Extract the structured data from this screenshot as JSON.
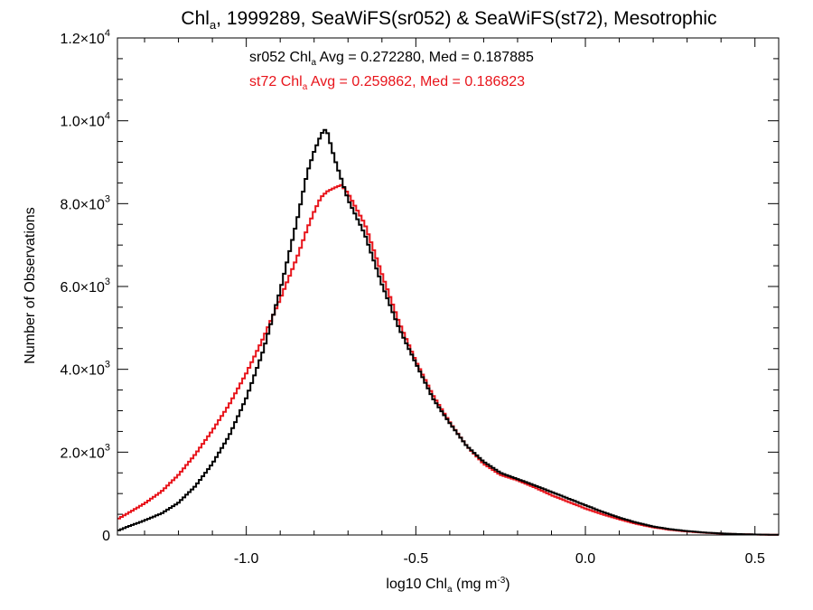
{
  "chart_data": {
    "type": "line",
    "title": {
      "pre": "Chl",
      "sub": "a",
      "post": ", 1999289, SeaWiFS(sr052) & SeaWiFS(st72), Mesotrophic"
    },
    "xlabel": {
      "pre": "log10 Chl",
      "sub": "a",
      "mid": " (mg m",
      "sup": "-3",
      "post": ")"
    },
    "ylabel": "Number of Observations",
    "xlim": [
      -1.38,
      0.57
    ],
    "ylim": [
      0,
      12000
    ],
    "x_ticks": [
      {
        "value": -1.0,
        "label": "-1.0"
      },
      {
        "value": -0.5,
        "label": "-0.5"
      },
      {
        "value": 0.0,
        "label": "0.0"
      },
      {
        "value": 0.5,
        "label": "0.5"
      }
    ],
    "y_ticks": [
      {
        "value": 0,
        "mant": "0",
        "exp": ""
      },
      {
        "value": 2000,
        "mant": "2.0×10",
        "exp": "3"
      },
      {
        "value": 4000,
        "mant": "4.0×10",
        "exp": "3"
      },
      {
        "value": 6000,
        "mant": "6.0×10",
        "exp": "3"
      },
      {
        "value": 8000,
        "mant": "8.0×10",
        "exp": "3"
      },
      {
        "value": 10000,
        "mant": "1.0×10",
        "exp": "4"
      },
      {
        "value": 12000,
        "mant": "1.2×10",
        "exp": "4"
      }
    ],
    "x_minor_step": 0.1,
    "y_minor_step": 500,
    "legend": [
      {
        "pre": "sr052 Chl",
        "sub": "a",
        "post": " Avg = 0.272280, Med = 0.187885",
        "color": "#000000"
      },
      {
        "pre": "st72 Chl",
        "sub": "a",
        "post": " Avg = 0.259862, Med = 0.186823",
        "color": "#e8141b"
      }
    ],
    "legend_placement": "top-center",
    "step": "histogram",
    "series": [
      {
        "name": "sr052",
        "color": "#000000",
        "points": [
          [
            -1.38,
            100
          ],
          [
            -1.35,
            200
          ],
          [
            -1.3,
            350
          ],
          [
            -1.25,
            520
          ],
          [
            -1.2,
            780
          ],
          [
            -1.15,
            1180
          ],
          [
            -1.1,
            1720
          ],
          [
            -1.05,
            2400
          ],
          [
            -1.0,
            3300
          ],
          [
            -0.95,
            4450
          ],
          [
            -0.9,
            5900
          ],
          [
            -0.85,
            7600
          ],
          [
            -0.82,
            8750
          ],
          [
            -0.8,
            9250
          ],
          [
            -0.78,
            9650
          ],
          [
            -0.77,
            9800
          ],
          [
            -0.76,
            9700
          ],
          [
            -0.74,
            9100
          ],
          [
            -0.72,
            8600
          ],
          [
            -0.7,
            8100
          ],
          [
            -0.65,
            7250
          ],
          [
            -0.6,
            6050
          ],
          [
            -0.55,
            5000
          ],
          [
            -0.5,
            4150
          ],
          [
            -0.45,
            3300
          ],
          [
            -0.4,
            2700
          ],
          [
            -0.35,
            2150
          ],
          [
            -0.3,
            1770
          ],
          [
            -0.25,
            1500
          ],
          [
            -0.2,
            1350
          ],
          [
            -0.15,
            1200
          ],
          [
            -0.1,
            1040
          ],
          [
            -0.05,
            880
          ],
          [
            0.0,
            720
          ],
          [
            0.05,
            560
          ],
          [
            0.1,
            420
          ],
          [
            0.15,
            300
          ],
          [
            0.2,
            205
          ],
          [
            0.25,
            140
          ],
          [
            0.3,
            95
          ],
          [
            0.35,
            60
          ],
          [
            0.4,
            38
          ],
          [
            0.45,
            22
          ],
          [
            0.5,
            12
          ],
          [
            0.55,
            6
          ],
          [
            0.57,
            4
          ]
        ]
      },
      {
        "name": "st72",
        "color": "#e8141b",
        "points": [
          [
            -1.38,
            380
          ],
          [
            -1.35,
            520
          ],
          [
            -1.3,
            760
          ],
          [
            -1.25,
            1050
          ],
          [
            -1.2,
            1450
          ],
          [
            -1.15,
            1950
          ],
          [
            -1.1,
            2520
          ],
          [
            -1.05,
            3150
          ],
          [
            -1.0,
            3900
          ],
          [
            -0.95,
            4750
          ],
          [
            -0.9,
            5700
          ],
          [
            -0.85,
            6700
          ],
          [
            -0.82,
            7400
          ],
          [
            -0.8,
            7800
          ],
          [
            -0.78,
            8150
          ],
          [
            -0.76,
            8300
          ],
          [
            -0.74,
            8380
          ],
          [
            -0.72,
            8450
          ],
          [
            -0.7,
            8250
          ],
          [
            -0.65,
            7500
          ],
          [
            -0.6,
            6300
          ],
          [
            -0.55,
            5150
          ],
          [
            -0.5,
            4200
          ],
          [
            -0.45,
            3380
          ],
          [
            -0.4,
            2720
          ],
          [
            -0.35,
            2150
          ],
          [
            -0.3,
            1720
          ],
          [
            -0.25,
            1450
          ],
          [
            -0.2,
            1320
          ],
          [
            -0.15,
            1150
          ],
          [
            -0.1,
            960
          ],
          [
            -0.05,
            800
          ],
          [
            0.0,
            640
          ],
          [
            0.05,
            500
          ],
          [
            0.1,
            380
          ],
          [
            0.15,
            270
          ],
          [
            0.2,
            185
          ],
          [
            0.25,
            125
          ],
          [
            0.3,
            85
          ],
          [
            0.35,
            55
          ],
          [
            0.4,
            34
          ],
          [
            0.45,
            20
          ],
          [
            0.5,
            11
          ],
          [
            0.55,
            6
          ],
          [
            0.57,
            4
          ]
        ]
      }
    ]
  }
}
